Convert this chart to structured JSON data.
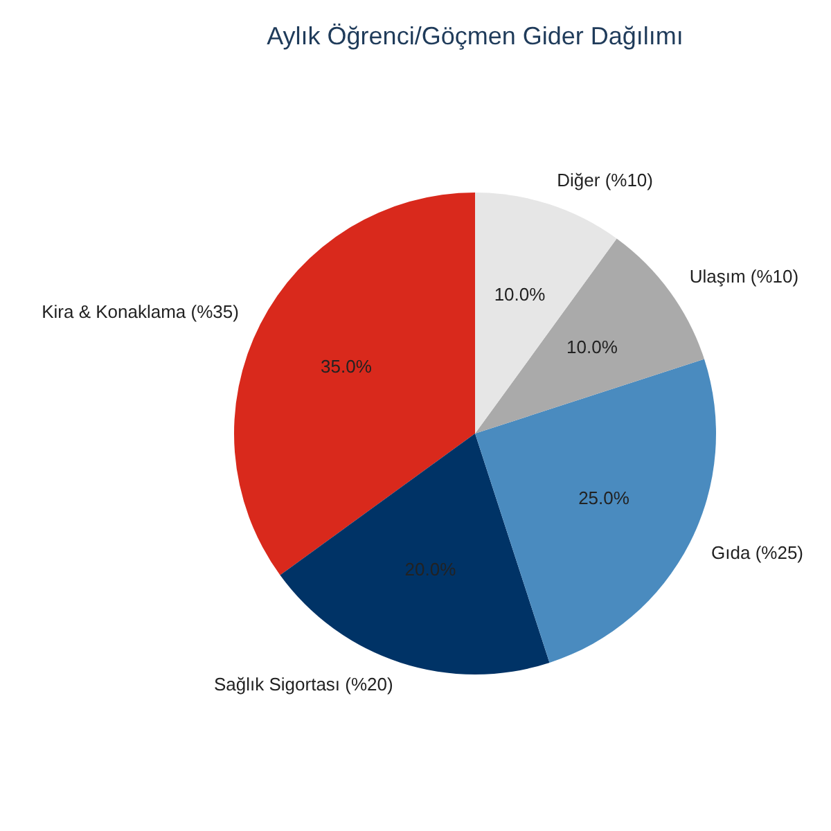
{
  "chart_data": {
    "type": "pie",
    "title": "Aylık Öğrenci/Göçmen Gider Dağılımı",
    "categories": [
      "Kira & Konaklama (%35)",
      "Sağlık Sigortası (%20)",
      "Gıda (%25)",
      "Ulaşım (%10)",
      "Diğer (%10)"
    ],
    "values": [
      35,
      20,
      25,
      10,
      10
    ],
    "colors": [
      "#d9291c",
      "#003366",
      "#4a8bbf",
      "#aaaaaa",
      "#e6e6e6"
    ],
    "value_labels": [
      "35.0%",
      "20.0%",
      "25.0%",
      "10.0%",
      "10.0%"
    ]
  }
}
